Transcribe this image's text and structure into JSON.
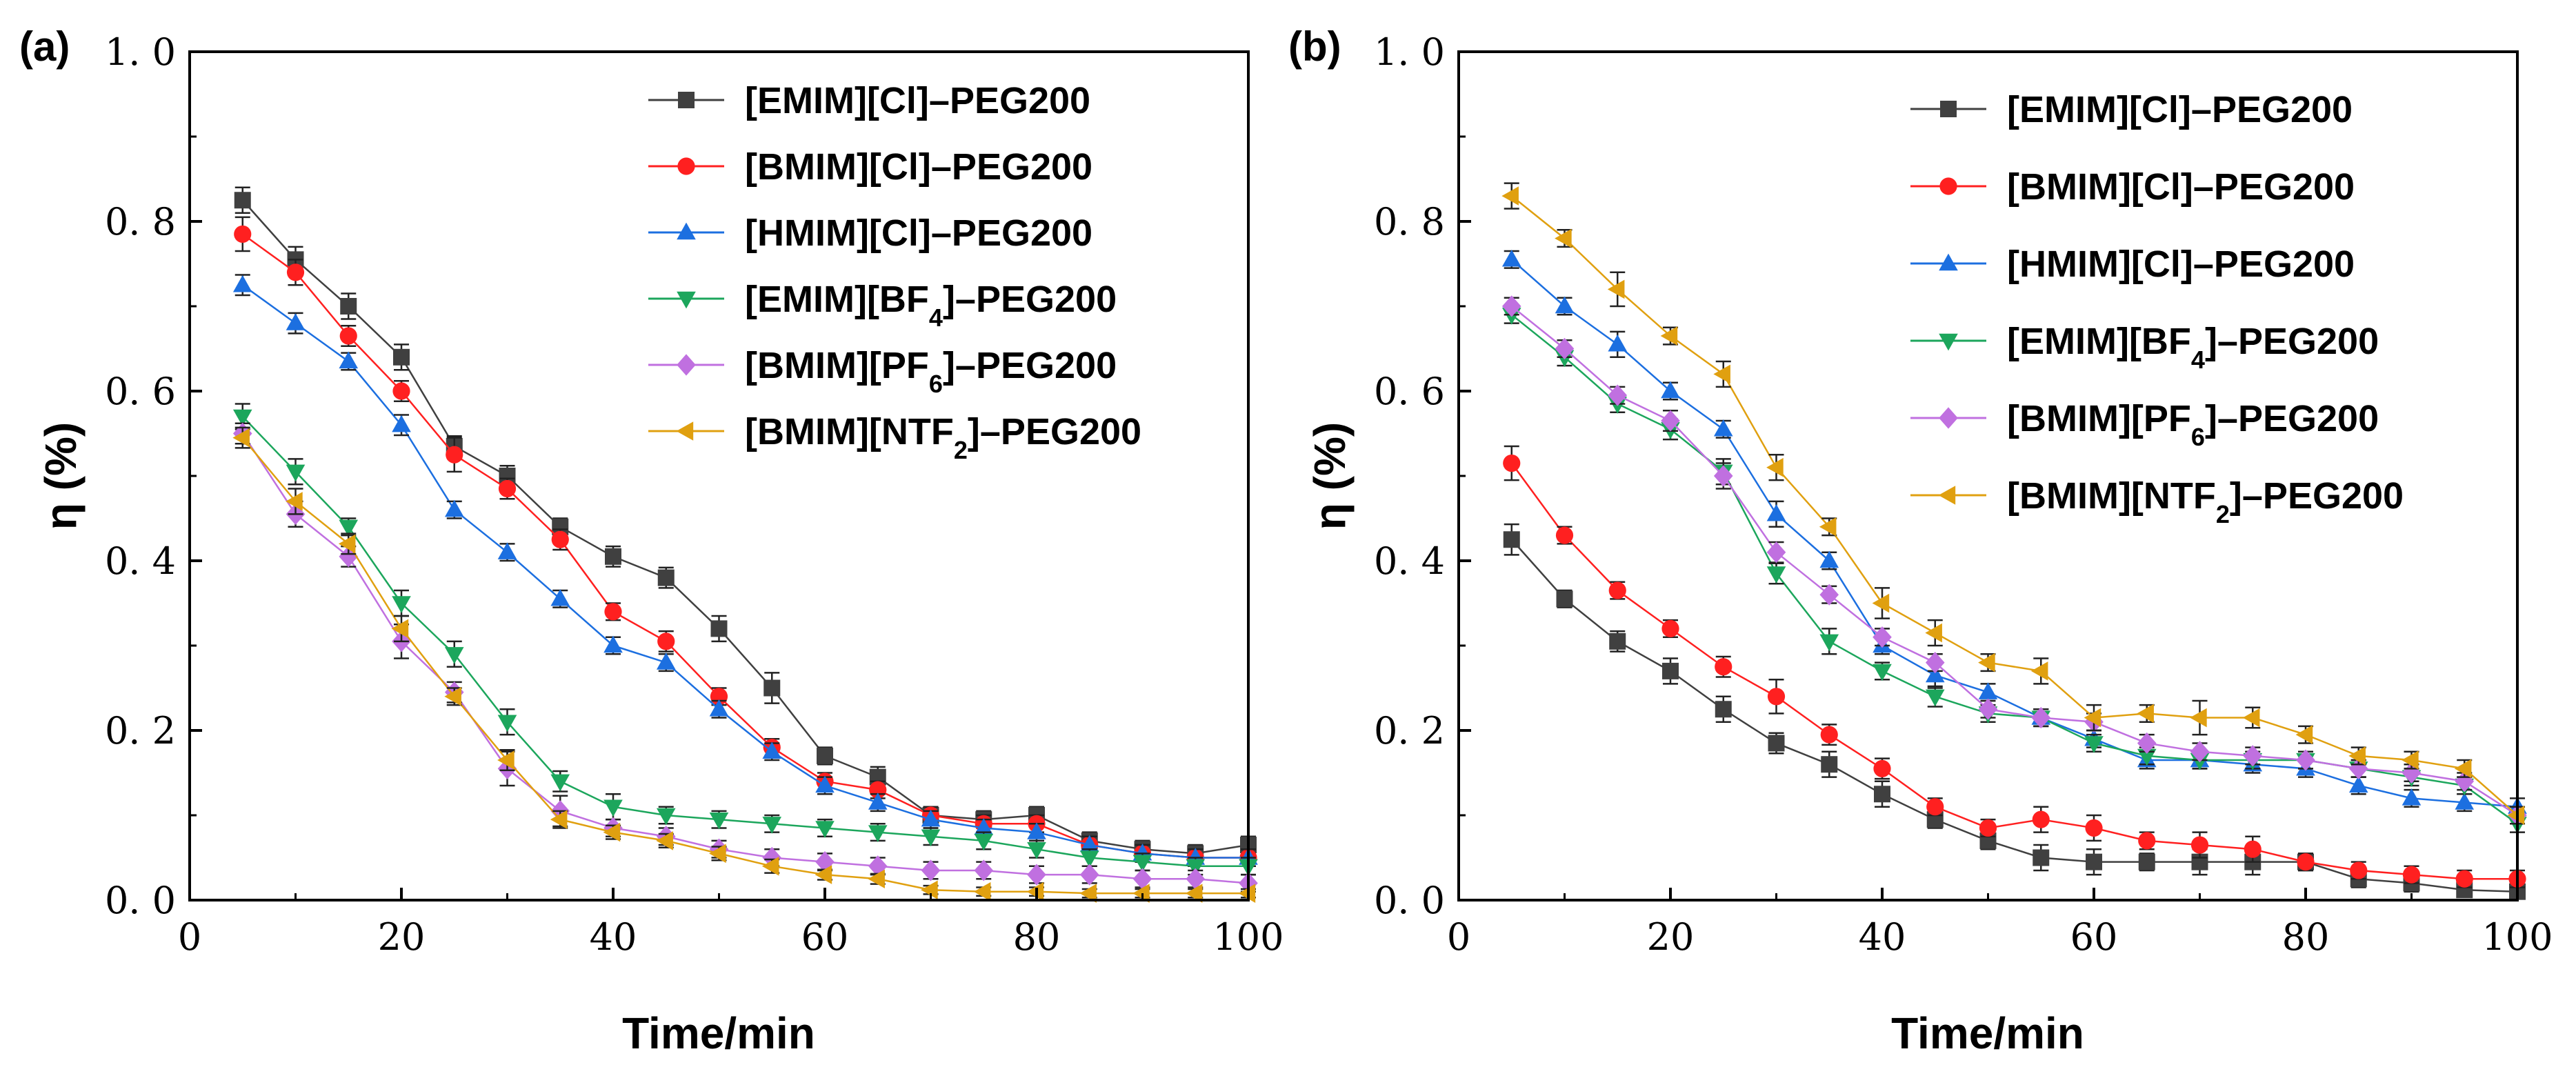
{
  "chart_data": [
    {
      "type": "line",
      "panel_label": "(a)",
      "xlabel": "Time/min",
      "ylabel": "η (%)",
      "xlim": [
        0,
        100
      ],
      "ylim": [
        0,
        1.0
      ],
      "xticks": [
        "0",
        "20",
        "40",
        "60",
        "80",
        "100"
      ],
      "yticks": [
        "0. 0",
        "0. 2",
        "0. 4",
        "0. 6",
        "0. 8",
        "1. 0"
      ],
      "legend_position": "top-right",
      "x": [
        5,
        10,
        15,
        20,
        25,
        30,
        35,
        40,
        45,
        50,
        55,
        60,
        65,
        70,
        75,
        80,
        85,
        90,
        95,
        100
      ],
      "series": [
        {
          "name": "[EMIM][Cl]–PEG200",
          "main": "[EMIM][Cl]–PEG200",
          "sub": "",
          "tail": "",
          "color": "#404040",
          "marker": "square",
          "values": [
            0.825,
            0.755,
            0.7,
            0.64,
            0.535,
            0.5,
            0.44,
            0.405,
            0.38,
            0.32,
            0.25,
            0.17,
            0.145,
            0.1,
            0.095,
            0.1,
            0.07,
            0.06,
            0.055,
            0.065
          ],
          "errors": [
            0.015,
            0.015,
            0.015,
            0.015,
            0.012,
            0.012,
            0.01,
            0.012,
            0.012,
            0.015,
            0.018,
            0.01,
            0.012,
            0.01,
            0.01,
            0.01,
            0.01,
            0.01,
            0.01,
            0.01
          ]
        },
        {
          "name": "[BMIM][Cl]–PEG200",
          "main": "[BMIM][Cl]–PEG200",
          "sub": "",
          "tail": "",
          "color": "#ff2020",
          "marker": "circle",
          "values": [
            0.785,
            0.74,
            0.665,
            0.6,
            0.525,
            0.485,
            0.425,
            0.34,
            0.305,
            0.24,
            0.18,
            0.14,
            0.13,
            0.1,
            0.09,
            0.09,
            0.065,
            0.055,
            0.05,
            0.05
          ],
          "errors": [
            0.02,
            0.015,
            0.012,
            0.012,
            0.02,
            0.012,
            0.012,
            0.01,
            0.012,
            0.01,
            0.01,
            0.01,
            0.01,
            0.01,
            0.01,
            0.01,
            0.01,
            0.01,
            0.01,
            0.01
          ]
        },
        {
          "name": "[HMIM][Cl]–PEG200",
          "main": "[HMIM][Cl]–PEG200",
          "sub": "",
          "tail": "",
          "color": "#1c6fe0",
          "marker": "triangle",
          "values": [
            0.725,
            0.68,
            0.635,
            0.56,
            0.46,
            0.41,
            0.355,
            0.3,
            0.28,
            0.225,
            0.175,
            0.135,
            0.115,
            0.095,
            0.085,
            0.08,
            0.065,
            0.055,
            0.05,
            0.05
          ],
          "errors": [
            0.012,
            0.012,
            0.01,
            0.012,
            0.01,
            0.01,
            0.01,
            0.01,
            0.01,
            0.01,
            0.01,
            0.01,
            0.01,
            0.01,
            0.01,
            0.01,
            0.01,
            0.01,
            0.01,
            0.01
          ]
        },
        {
          "name": "[EMIM][BF4]–PEG200",
          "main": "[EMIM][BF",
          "sub": "4",
          "tail": "]–PEG200",
          "color": "#1ca65c",
          "marker": "triangle-down",
          "values": [
            0.57,
            0.505,
            0.44,
            0.35,
            0.29,
            0.21,
            0.14,
            0.11,
            0.1,
            0.095,
            0.09,
            0.085,
            0.08,
            0.075,
            0.07,
            0.06,
            0.05,
            0.045,
            0.04,
            0.04
          ],
          "errors": [
            0.015,
            0.015,
            0.01,
            0.015,
            0.015,
            0.015,
            0.012,
            0.015,
            0.01,
            0.01,
            0.01,
            0.01,
            0.01,
            0.01,
            0.01,
            0.01,
            0.01,
            0.01,
            0.01,
            0.01
          ]
        },
        {
          "name": "[BMIM][PF6]–PEG200",
          "main": "[BMIM][PF",
          "sub": "6",
          "tail": "]–PEG200",
          "color": "#c070e0",
          "marker": "diamond",
          "values": [
            0.55,
            0.455,
            0.405,
            0.305,
            0.245,
            0.155,
            0.105,
            0.085,
            0.075,
            0.06,
            0.05,
            0.045,
            0.04,
            0.035,
            0.035,
            0.03,
            0.03,
            0.025,
            0.025,
            0.02
          ],
          "errors": [
            0.012,
            0.015,
            0.012,
            0.02,
            0.012,
            0.02,
            0.018,
            0.01,
            0.01,
            0.01,
            0.01,
            0.01,
            0.01,
            0.01,
            0.01,
            0.01,
            0.01,
            0.01,
            0.01,
            0.01
          ]
        },
        {
          "name": "[BMIM][NTF2]–PEG200",
          "main": "[BMIM][NTF",
          "sub": "2",
          "tail": "]–PEG200",
          "color": "#e0a010",
          "marker": "triangle-left",
          "values": [
            0.545,
            0.47,
            0.42,
            0.32,
            0.24,
            0.165,
            0.095,
            0.08,
            0.07,
            0.055,
            0.04,
            0.03,
            0.025,
            0.012,
            0.01,
            0.01,
            0.008,
            0.008,
            0.008,
            0.008
          ],
          "errors": [
            0.012,
            0.015,
            0.012,
            0.015,
            0.01,
            0.012,
            0.01,
            0.008,
            0.008,
            0.008,
            0.008,
            0.006,
            0.006,
            0.005,
            0.005,
            0.005,
            0.005,
            0.005,
            0.005,
            0.005
          ]
        }
      ]
    },
    {
      "type": "line",
      "panel_label": "(b)",
      "xlabel": "Time/min",
      "ylabel": "η (%)",
      "xlim": [
        0,
        100
      ],
      "ylim": [
        0,
        1.0
      ],
      "xticks": [
        "0",
        "20",
        "40",
        "60",
        "80",
        "100"
      ],
      "yticks": [
        "0. 0",
        "0. 2",
        "0. 4",
        "0. 6",
        "0. 8",
        "1. 0"
      ],
      "legend_position": "top-right",
      "x": [
        5,
        10,
        15,
        20,
        25,
        30,
        35,
        40,
        45,
        50,
        55,
        60,
        65,
        70,
        75,
        80,
        85,
        90,
        95,
        100
      ],
      "series": [
        {
          "name": "[EMIM][Cl]–PEG200",
          "main": "[EMIM][Cl]–PEG200",
          "sub": "",
          "tail": "",
          "color": "#404040",
          "marker": "square",
          "values": [
            0.425,
            0.355,
            0.305,
            0.27,
            0.225,
            0.185,
            0.16,
            0.125,
            0.095,
            0.07,
            0.05,
            0.045,
            0.045,
            0.045,
            0.045,
            0.045,
            0.025,
            0.02,
            0.012,
            0.01
          ],
          "errors": [
            0.018,
            0.01,
            0.012,
            0.015,
            0.015,
            0.012,
            0.015,
            0.015,
            0.01,
            0.01,
            0.015,
            0.015,
            0.01,
            0.015,
            0.015,
            0.01,
            0.01,
            0.01,
            0.008,
            0.008
          ]
        },
        {
          "name": "[BMIM][Cl]–PEG200",
          "main": "[BMIM][Cl]–PEG200",
          "sub": "",
          "tail": "",
          "color": "#ff2020",
          "marker": "circle",
          "values": [
            0.515,
            0.43,
            0.365,
            0.32,
            0.275,
            0.24,
            0.195,
            0.155,
            0.11,
            0.085,
            0.095,
            0.085,
            0.07,
            0.065,
            0.06,
            0.045,
            0.035,
            0.03,
            0.025,
            0.025
          ],
          "errors": [
            0.02,
            0.01,
            0.01,
            0.01,
            0.012,
            0.02,
            0.012,
            0.012,
            0.01,
            0.01,
            0.015,
            0.015,
            0.01,
            0.015,
            0.015,
            0.01,
            0.01,
            0.01,
            0.01,
            0.01
          ]
        },
        {
          "name": "[HMIM][Cl]–PEG200",
          "main": "[HMIM][Cl]–PEG200",
          "sub": "",
          "tail": "",
          "color": "#1c6fe0",
          "marker": "triangle",
          "values": [
            0.755,
            0.7,
            0.655,
            0.6,
            0.555,
            0.455,
            0.4,
            0.3,
            0.265,
            0.245,
            0.215,
            0.19,
            0.165,
            0.165,
            0.16,
            0.155,
            0.135,
            0.12,
            0.115,
            0.11
          ],
          "errors": [
            0.01,
            0.01,
            0.015,
            0.01,
            0.01,
            0.015,
            0.01,
            0.01,
            0.015,
            0.01,
            0.01,
            0.01,
            0.01,
            0.01,
            0.01,
            0.01,
            0.01,
            0.01,
            0.01,
            0.01
          ]
        },
        {
          "name": "[EMIM][BF4]–PEG200",
          "main": "[EMIM][BF",
          "sub": "4",
          "tail": "]–PEG200",
          "color": "#1ca65c",
          "marker": "triangle-down",
          "values": [
            0.69,
            0.64,
            0.585,
            0.555,
            0.505,
            0.385,
            0.305,
            0.27,
            0.24,
            0.22,
            0.215,
            0.185,
            0.17,
            0.165,
            0.165,
            0.165,
            0.155,
            0.145,
            0.135,
            0.09
          ],
          "errors": [
            0.01,
            0.01,
            0.01,
            0.012,
            0.015,
            0.012,
            0.015,
            0.01,
            0.012,
            0.01,
            0.01,
            0.01,
            0.01,
            0.01,
            0.01,
            0.01,
            0.01,
            0.01,
            0.01,
            0.01
          ]
        },
        {
          "name": "[BMIM][PF6]–PEG200",
          "main": "[BMIM][PF",
          "sub": "6",
          "tail": "]–PEG200",
          "color": "#c070e0",
          "marker": "diamond",
          "values": [
            0.7,
            0.65,
            0.595,
            0.565,
            0.5,
            0.41,
            0.36,
            0.31,
            0.28,
            0.225,
            0.215,
            0.21,
            0.185,
            0.175,
            0.17,
            0.165,
            0.155,
            0.15,
            0.14,
            0.1
          ],
          "errors": [
            0.01,
            0.01,
            0.01,
            0.012,
            0.015,
            0.012,
            0.01,
            0.01,
            0.01,
            0.01,
            0.01,
            0.01,
            0.01,
            0.01,
            0.01,
            0.01,
            0.01,
            0.01,
            0.01,
            0.01
          ]
        },
        {
          "name": "[BMIM][NTF2]–PEG200",
          "main": "[BMIM][NTF",
          "sub": "2",
          "tail": "]–PEG200",
          "color": "#e0a010",
          "marker": "triangle-left",
          "values": [
            0.83,
            0.78,
            0.72,
            0.665,
            0.62,
            0.51,
            0.44,
            0.35,
            0.315,
            0.28,
            0.27,
            0.215,
            0.22,
            0.215,
            0.215,
            0.195,
            0.17,
            0.165,
            0.155,
            0.1
          ],
          "errors": [
            0.015,
            0.01,
            0.02,
            0.01,
            0.015,
            0.015,
            0.01,
            0.018,
            0.015,
            0.01,
            0.015,
            0.015,
            0.01,
            0.02,
            0.012,
            0.01,
            0.01,
            0.01,
            0.01,
            0.01
          ]
        }
      ]
    }
  ]
}
